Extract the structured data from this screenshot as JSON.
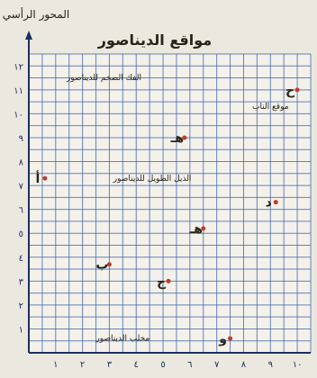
{
  "chart_data": {
    "type": "scatter",
    "title": "مواقع الديناصور",
    "ylabel": "المحور الرأسي",
    "xlabel": "",
    "xlim": [
      0,
      10.5
    ],
    "ylim": [
      0,
      12.5
    ],
    "x_ticks": [
      "١",
      "٢",
      "٣",
      "٤",
      "٥",
      "٦",
      "٧",
      "٨",
      "٩",
      "١٠"
    ],
    "y_ticks": [
      "١",
      "٢",
      "٣",
      "٤",
      "٥",
      "٦",
      "٧",
      "٨",
      "٩",
      "١٠",
      "١١",
      "١٢"
    ],
    "grid": true,
    "points": [
      {
        "label": "أ",
        "x": 0.6,
        "y": 7.3
      },
      {
        "label": "ب",
        "x": 3.0,
        "y": 3.7
      },
      {
        "label": "ج",
        "x": 5.2,
        "y": 3.0
      },
      {
        "label": "د",
        "x": 9.2,
        "y": 6.3
      },
      {
        "label": "هـ",
        "x": 6.5,
        "y": 5.2
      },
      {
        "label": "ح",
        "x": 10.0,
        "y": 11.0
      },
      {
        "label": "و",
        "x": 7.5,
        "y": 0.6
      },
      {
        "label": "هـ",
        "x": 5.8,
        "y": 9.0
      }
    ],
    "annotations": [
      {
        "text": "الفك الضخم للديناصور",
        "x": 2.8,
        "y": 11.4
      },
      {
        "text": "الذيل الطويل للديناصور",
        "x": 4.6,
        "y": 7.2
      },
      {
        "text": "مخلب الديناصور",
        "x": 3.5,
        "y": 0.5
      },
      {
        "text": "موقع الناب",
        "x": 9.0,
        "y": 10.2
      }
    ],
    "colors": {
      "grid": "#3a5fa8",
      "axis": "#1c2f60",
      "marker": "#c63a2a",
      "label": "#2a2418"
    }
  }
}
